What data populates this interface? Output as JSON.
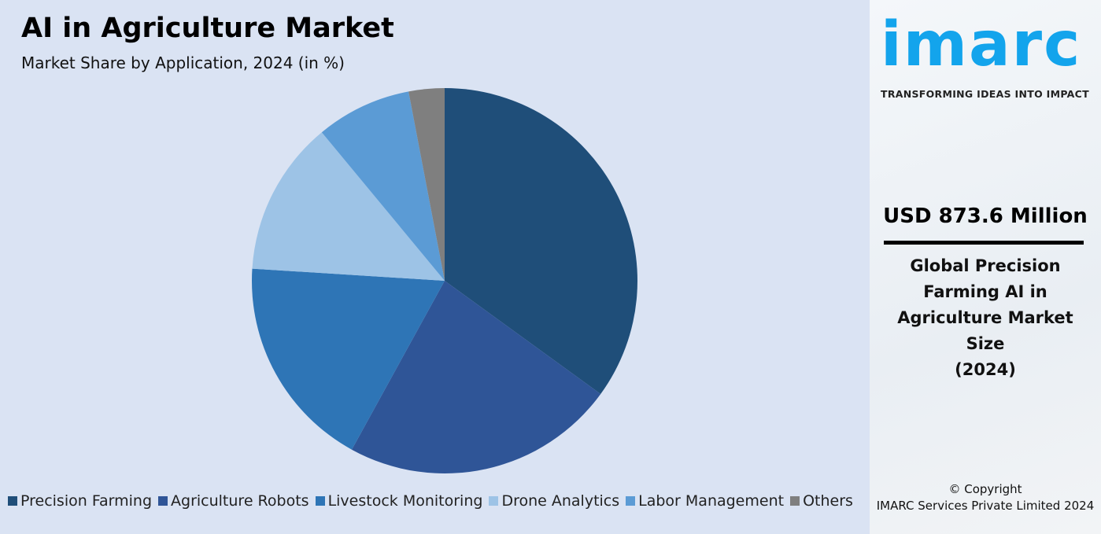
{
  "chart_data": {
    "type": "pie",
    "title": "AI in Agriculture Market",
    "subtitle": "Market Share by Application, 2024 (in %)",
    "categories": [
      "Precision Farming",
      "Agriculture Robots",
      "Livestock Monitoring",
      "Drone Analytics",
      "Labor Management",
      "Others"
    ],
    "values": [
      35,
      23,
      18,
      13,
      8,
      3
    ],
    "colors": [
      "#1f4e79",
      "#2f5597",
      "#2e75b6",
      "#9dc3e6",
      "#5b9bd5",
      "#7f7f7f"
    ],
    "start": "12 o'clock, clockwise",
    "legend": "bottom"
  },
  "sidebar": {
    "logo": "imarc",
    "tagline": "TRANSFORMING IDEAS INTO IMPACT",
    "value": "USD 873.6 Million",
    "desc_lines": [
      "Global Precision",
      "Farming AI in",
      "Agriculture Market",
      "Size",
      "(2024)"
    ],
    "copyright": "© Copyright",
    "company": "IMARC Services Private Limited 2024"
  },
  "colors": {
    "background": "#dae3f3",
    "logo": "#13a4ec"
  }
}
